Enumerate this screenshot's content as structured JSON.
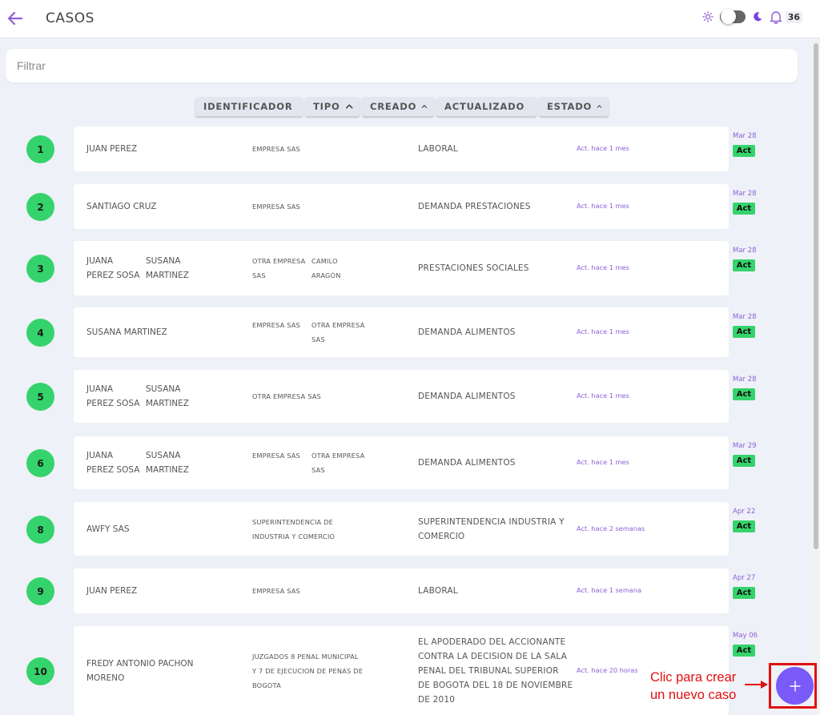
{
  "header": {
    "title": "CASOS",
    "notification_count": "36"
  },
  "filter": {
    "placeholder": "Filtrar"
  },
  "sort_columns": [
    {
      "label": "IDENTIFICADOR"
    },
    {
      "label": "TIPO"
    },
    {
      "label": "CREADO"
    },
    {
      "label": "ACTUALIZADO"
    },
    {
      "label": "ESTADO"
    }
  ],
  "cases": [
    {
      "number": "1",
      "clients": [
        [
          "JUAN PEREZ"
        ]
      ],
      "companies": [
        [
          "EMPRESA SAS"
        ]
      ],
      "type": [
        "LABORAL"
      ],
      "updated": "Act. hace 1 mes",
      "date": "Mar 28",
      "status": "Act"
    },
    {
      "number": "2",
      "clients": [
        [
          "SANTIAGO CRUZ"
        ]
      ],
      "companies": [
        [
          "EMPRESA SAS"
        ]
      ],
      "type": [
        "DEMANDA PRESTACIONES"
      ],
      "updated": "Act. hace 1 mes",
      "date": "Mar 28",
      "status": "Act"
    },
    {
      "number": "3",
      "clients": [
        [
          "JUANA",
          "PEREZ SOSA"
        ],
        [
          "SUSANA",
          "MARTINEZ"
        ]
      ],
      "companies": [
        [
          "OTRA EMPRESA",
          "SAS"
        ],
        [
          "CAMILO",
          "ARAGÓN"
        ]
      ],
      "type": [
        "PRESTACIONES SOCIALES"
      ],
      "updated": "Act. hace 1 mes",
      "date": "Mar 28",
      "status": "Act"
    },
    {
      "number": "4",
      "clients": [
        [
          "SUSANA MARTINEZ"
        ]
      ],
      "companies": [
        [
          "EMPRESA SAS"
        ],
        [
          "OTRA EMPRESA",
          "SAS"
        ]
      ],
      "type": [
        "DEMANDA ALIMENTOS"
      ],
      "updated": "Act. hace 1 mes",
      "date": "Mar 28",
      "status": "Act"
    },
    {
      "number": "5",
      "clients": [
        [
          "JUANA",
          "PEREZ SOSA"
        ],
        [
          "SUSANA",
          "MARTINEZ"
        ]
      ],
      "companies": [
        [
          "OTRA EMPRESA SAS"
        ]
      ],
      "type": [
        "DEMANDA ALIMENTOS"
      ],
      "updated": "Act. hace 1 mes",
      "date": "Mar 28",
      "status": "Act"
    },
    {
      "number": "6",
      "clients": [
        [
          "JUANA",
          "PEREZ SOSA"
        ],
        [
          "SUSANA",
          "MARTINEZ"
        ]
      ],
      "companies": [
        [
          "EMPRESA SAS"
        ],
        [
          "OTRA EMPRESA",
          "SAS"
        ]
      ],
      "type": [
        "DEMANDA ALIMENTOS"
      ],
      "updated": "Act. hace 1 mes",
      "date": "Mar 29",
      "status": "Act"
    },
    {
      "number": "8",
      "clients": [
        [
          "AWFY SAS"
        ]
      ],
      "companies": [
        [
          "SUPERINTENDENCIA DE",
          "INDUSTRIA Y COMERCIO"
        ]
      ],
      "type": [
        "SUPERINTENDENCIA INDUSTRIA Y",
        "COMERCIO"
      ],
      "updated": "Act. hace 2 semanas",
      "date": "Apr 22",
      "status": "Act"
    },
    {
      "number": "9",
      "clients": [
        [
          "JUAN PEREZ"
        ]
      ],
      "companies": [
        [
          "EMPRESA SAS"
        ]
      ],
      "type": [
        "LABORAL"
      ],
      "updated": "Act. hace 1 semana",
      "date": "Apr 27",
      "status": "Act"
    },
    {
      "number": "10",
      "clients": [
        [
          "FREDY ANTONIO PACHON",
          "MORENO"
        ]
      ],
      "companies": [
        [
          "JUZGADOS 8 PENAL MUNICIPAL",
          "Y 7 DE EJECUCION DE PENAS DE",
          "BOGOTA"
        ]
      ],
      "type": [
        "EL APODERADO DEL ACCIONANTE",
        "CONTRA LA DECISION DE LA SALA",
        "PENAL DEL TRIBUNAL SUPERIOR",
        "DE BOGOTA DEL 18 DE NOVIEMBRE",
        "DE 2010"
      ],
      "updated": "Act. hace 20 horas",
      "date": "May 06",
      "status": "Act"
    }
  ],
  "fab": {
    "symbol": "+"
  },
  "annotation": {
    "line1": "Clic para crear",
    "line2": "un nuevo caso"
  },
  "colors": {
    "accent": "#7a5af8",
    "status_green": "#35d36c",
    "date_purple": "#8e5fd8",
    "annotation_red": "#e01010"
  }
}
